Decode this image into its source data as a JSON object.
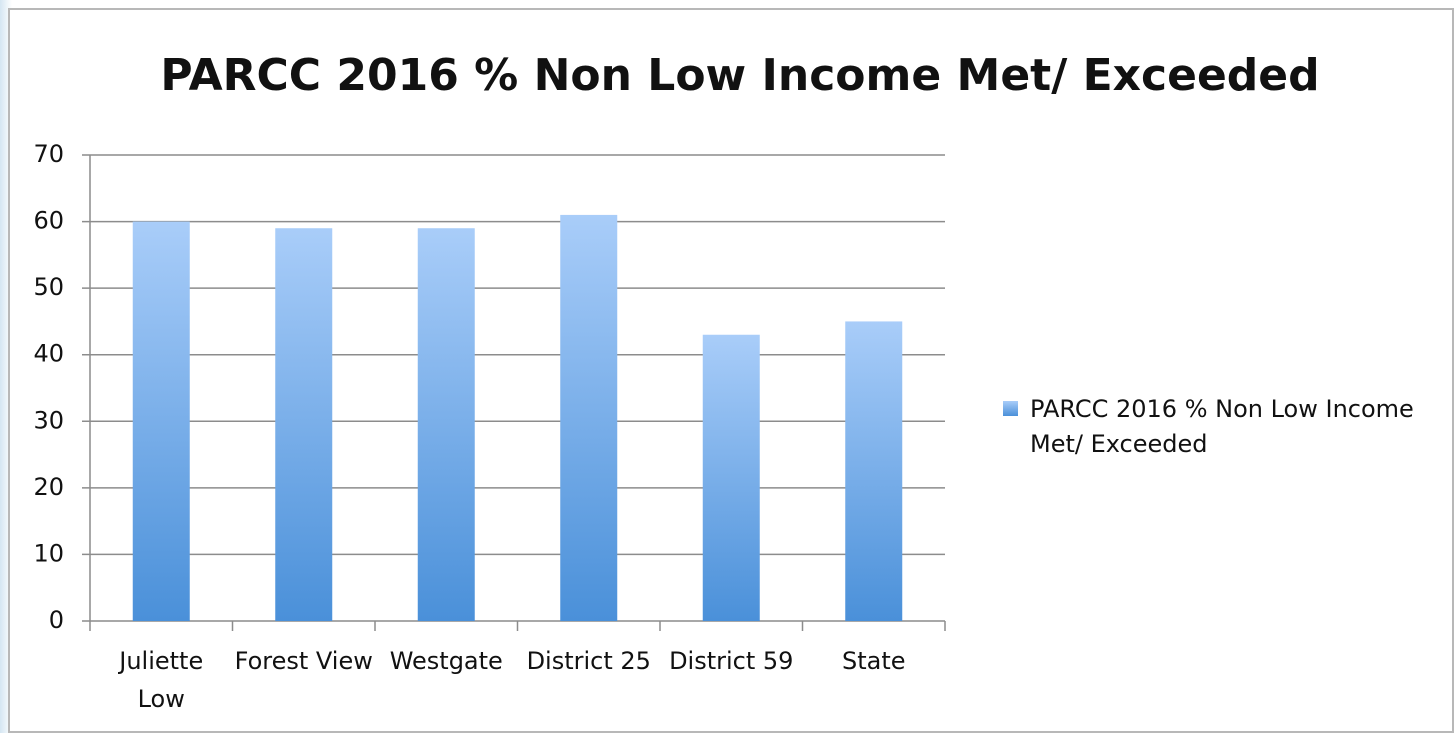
{
  "chart_data": {
    "type": "bar",
    "title": "PARCC 2016 % Non Low Income Met/ Exceeded",
    "categories": [
      "Juliette Low",
      "Forest View",
      "Westgate",
      "District 25",
      "District 59",
      "State"
    ],
    "series": [
      {
        "name": "PARCC 2016 % Non Low Income Met/ Exceeded",
        "color": "#4a90d9",
        "values": [
          60,
          59,
          59,
          61,
          43,
          45
        ]
      }
    ],
    "ylim": [
      0,
      70
    ],
    "yticks": [
      0,
      10,
      20,
      30,
      40,
      50,
      60,
      70
    ],
    "grid": true,
    "legend": "right"
  }
}
